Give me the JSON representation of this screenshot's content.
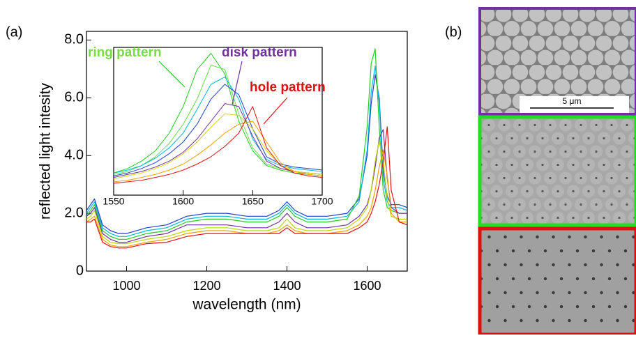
{
  "chart_data": [
    {
      "type": "line",
      "panel_label": "(a)",
      "xlabel": "wavelength (nm)",
      "ylabel": "reflected light intesity",
      "xlim": [
        900,
        1700
      ],
      "xticks": [
        1000,
        1200,
        1400,
        1600
      ],
      "ylim": [
        0,
        8.3
      ],
      "yticks": [
        0,
        {
          "value": 2,
          "label": "2.0"
        },
        {
          "value": 4,
          "label": "4.0"
        },
        {
          "value": 6,
          "label": "6.0"
        },
        {
          "value": 8,
          "label": "8.0"
        }
      ],
      "annotations": [
        "ring pattern",
        "disk pattern",
        "hole pattern"
      ],
      "x": [
        900,
        910,
        920,
        940,
        960,
        980,
        1000,
        1050,
        1100,
        1150,
        1200,
        1250,
        1300,
        1350,
        1380,
        1400,
        1420,
        1450,
        1500,
        1550,
        1580,
        1600,
        1610,
        1620,
        1630,
        1640,
        1650,
        1660,
        1680,
        1700
      ],
      "series": [
        {
          "color": "#1f3fd0",
          "values": [
            2.1,
            2.3,
            2.5,
            1.6,
            1.4,
            1.3,
            1.3,
            1.5,
            1.6,
            1.9,
            2.0,
            2.0,
            1.9,
            1.9,
            2.1,
            2.4,
            2.1,
            1.9,
            1.9,
            2.0,
            2.5,
            4.0,
            5.8,
            6.8,
            6.0,
            3.5,
            2.6,
            2.3,
            2.3,
            2.2
          ]
        },
        {
          "color": "#00b8e0",
          "values": [
            2.0,
            2.2,
            2.4,
            1.5,
            1.3,
            1.2,
            1.2,
            1.4,
            1.5,
            1.8,
            1.9,
            1.9,
            1.8,
            1.8,
            2.0,
            2.3,
            2.0,
            1.8,
            1.8,
            1.9,
            2.4,
            4.2,
            6.2,
            7.1,
            5.8,
            3.2,
            2.4,
            2.2,
            2.2,
            2.1
          ]
        },
        {
          "color": "#22cc22",
          "values": [
            1.9,
            2.1,
            2.3,
            1.4,
            1.2,
            1.1,
            1.1,
            1.3,
            1.4,
            1.7,
            1.8,
            1.8,
            1.7,
            1.7,
            1.9,
            2.2,
            1.9,
            1.7,
            1.7,
            1.8,
            2.6,
            5.0,
            7.2,
            7.7,
            5.0,
            2.8,
            2.2,
            2.1,
            2.0,
            2.0
          ]
        },
        {
          "color": "#7030a0",
          "values": [
            1.9,
            2.0,
            2.2,
            1.3,
            1.1,
            1.0,
            1.0,
            1.2,
            1.3,
            1.6,
            1.6,
            1.6,
            1.5,
            1.5,
            1.7,
            2.0,
            1.7,
            1.5,
            1.5,
            1.6,
            1.9,
            2.3,
            2.8,
            3.6,
            4.6,
            4.9,
            3.2,
            2.2,
            2.0,
            2.0
          ]
        },
        {
          "color": "#b8d800",
          "values": [
            1.8,
            1.9,
            2.1,
            1.2,
            1.0,
            0.95,
            0.95,
            1.1,
            1.2,
            1.4,
            1.5,
            1.5,
            1.4,
            1.4,
            1.5,
            1.8,
            1.5,
            1.4,
            1.4,
            1.5,
            1.8,
            2.2,
            2.8,
            3.8,
            4.5,
            3.8,
            2.5,
            1.9,
            1.8,
            1.8
          ]
        },
        {
          "color": "#f0a000",
          "values": [
            1.7,
            1.8,
            1.9,
            1.1,
            0.9,
            0.85,
            0.85,
            1.0,
            1.1,
            1.3,
            1.4,
            1.4,
            1.3,
            1.3,
            1.4,
            1.6,
            1.4,
            1.3,
            1.3,
            1.4,
            1.6,
            1.9,
            2.2,
            2.8,
            3.6,
            4.2,
            3.3,
            2.0,
            1.7,
            1.7
          ]
        },
        {
          "color": "#e01010",
          "values": [
            1.7,
            1.7,
            1.8,
            1.0,
            0.85,
            0.8,
            0.8,
            0.95,
            1.0,
            1.2,
            1.3,
            1.3,
            1.3,
            1.3,
            1.3,
            1.5,
            1.3,
            1.3,
            1.3,
            1.3,
            1.5,
            1.7,
            2.0,
            2.4,
            3.0,
            3.8,
            5.0,
            2.8,
            1.7,
            1.6
          ]
        }
      ]
    },
    {
      "type": "line",
      "xlim": [
        1550,
        1700
      ],
      "xticks": [
        1550,
        1600,
        1650,
        1700
      ],
      "ylim": [
        0,
        10
      ],
      "x": [
        1550,
        1560,
        1570,
        1580,
        1590,
        1600,
        1610,
        1620,
        1630,
        1640,
        1650,
        1660,
        1670,
        1680,
        1690,
        1700
      ],
      "series": [
        {
          "color": "#22cc22",
          "values": [
            1.5,
            1.8,
            2.3,
            3.0,
            4.2,
            6.0,
            8.5,
            9.6,
            8.2,
            5.0,
            3.0,
            2.0,
            1.7,
            1.5,
            1.4,
            1.3
          ]
        },
        {
          "color": "#66dd44",
          "values": [
            1.4,
            1.6,
            2.0,
            2.6,
            3.5,
            4.8,
            6.5,
            8.8,
            8.5,
            5.5,
            3.2,
            2.1,
            1.8,
            1.6,
            1.5,
            1.4
          ]
        },
        {
          "color": "#00b8e0",
          "values": [
            1.5,
            1.7,
            2.0,
            2.5,
            3.2,
            4.2,
            5.8,
            7.5,
            8.0,
            6.5,
            3.8,
            2.4,
            2.0,
            1.8,
            1.7,
            1.6
          ]
        },
        {
          "color": "#1f3fd0",
          "values": [
            1.3,
            1.5,
            1.8,
            2.2,
            2.8,
            3.6,
            4.8,
            6.5,
            7.5,
            6.8,
            4.5,
            2.6,
            2.1,
            1.9,
            1.8,
            1.7
          ]
        },
        {
          "color": "#7030a0",
          "values": [
            1.2,
            1.4,
            1.6,
            1.9,
            2.3,
            2.9,
            3.8,
            5.0,
            6.2,
            6.0,
            4.0,
            2.3,
            1.8,
            1.6,
            1.5,
            1.4
          ]
        },
        {
          "color": "#d8d800",
          "values": [
            1.1,
            1.3,
            1.5,
            1.8,
            2.2,
            2.8,
            3.6,
            4.6,
            5.5,
            5.4,
            4.5,
            3.0,
            2.0,
            1.6,
            1.5,
            1.4
          ]
        },
        {
          "color": "#f0a000",
          "values": [
            0.9,
            1.0,
            1.2,
            1.4,
            1.7,
            2.1,
            2.7,
            3.4,
            4.2,
            4.8,
            5.0,
            3.6,
            2.2,
            1.6,
            1.4,
            1.3
          ]
        },
        {
          "color": "#e01010",
          "values": [
            0.8,
            0.9,
            1.0,
            1.2,
            1.4,
            1.7,
            2.1,
            2.6,
            3.3,
            4.2,
            6.0,
            3.2,
            2.0,
            1.5,
            1.3,
            1.2
          ]
        }
      ]
    }
  ],
  "panel_b": {
    "label": "(b)",
    "scale_bar": "5 μm"
  }
}
